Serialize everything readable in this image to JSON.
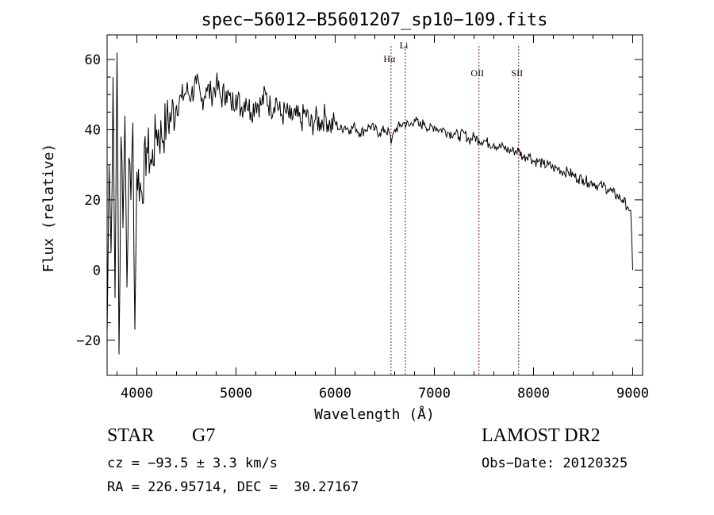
{
  "chart_data": {
    "type": "line",
    "title": "spec−56012−B5601207_sp10−109.fits",
    "xlabel": "Wavelength (Å)",
    "ylabel": "Flux (relative)",
    "xlim": [
      3700,
      9100
    ],
    "ylim": [
      -30,
      67
    ],
    "x_ticks": [
      4000,
      5000,
      6000,
      7000,
      8000,
      9000
    ],
    "y_ticks": [
      -20,
      0,
      20,
      40,
      60
    ],
    "x_tick_labels": [
      "4000",
      "5000",
      "6000",
      "7000",
      "8000",
      "9000"
    ],
    "y_tick_labels": [
      "−20",
      "0",
      "20",
      "40",
      "60"
    ],
    "grid": false,
    "line_color": "#000000",
    "line_markers_color": "#8b1a1a",
    "line_markers": [
      {
        "label": "Hα",
        "wavelength": 6563
      },
      {
        "label": "Li",
        "wavelength": 6708
      },
      {
        "label": "OII",
        "wavelength": 7450
      },
      {
        "label": "SII",
        "wavelength": 7850
      }
    ],
    "series": [
      {
        "x": [
          3700,
          3720,
          3740,
          3760,
          3780,
          3800,
          3820,
          3840,
          3860,
          3880,
          3900,
          3920,
          3940,
          3960,
          3980,
          4000,
          4050,
          4100,
          4150,
          4200,
          4250,
          4300,
          4350,
          4400,
          4450,
          4500,
          4550,
          4600,
          4650,
          4700,
          4750,
          4800,
          4850,
          4900,
          4950,
          5000,
          5050,
          5100,
          5150,
          5200,
          5250,
          5300,
          5350,
          5400,
          5450,
          5500,
          5550,
          5600,
          5650,
          5700,
          5750,
          5800,
          5850,
          5900,
          5950,
          6000,
          6050,
          6100,
          6150,
          6200,
          6250,
          6300,
          6350,
          6400,
          6450,
          6500,
          6550,
          6563,
          6600,
          6650,
          6700,
          6750,
          6800,
          6850,
          6900,
          6950,
          7000,
          7050,
          7100,
          7150,
          7200,
          7250,
          7300,
          7350,
          7400,
          7450,
          7500,
          7550,
          7600,
          7650,
          7700,
          7750,
          7800,
          7850,
          7900,
          7950,
          8000,
          8050,
          8100,
          8150,
          8200,
          8250,
          8300,
          8350,
          8400,
          8450,
          8500,
          8550,
          8600,
          8650,
          8700,
          8750,
          8800,
          8850,
          8900,
          8950,
          8980,
          9000
        ],
        "y": [
          -18,
          30,
          5,
          55,
          -8,
          62,
          -24,
          38,
          12,
          44,
          -5,
          32,
          20,
          42,
          -17,
          28,
          22,
          35,
          30,
          40,
          38,
          42,
          44,
          47,
          49,
          51,
          50,
          53,
          48,
          52,
          50,
          53,
          49,
          51,
          47,
          50,
          46,
          49,
          45,
          48,
          47,
          50,
          46,
          49,
          44,
          45,
          43,
          44,
          42,
          45,
          41,
          43,
          42,
          44,
          41,
          42,
          40,
          41,
          40,
          41,
          39,
          40,
          41,
          40,
          39,
          40,
          39,
          36,
          40,
          41,
          42,
          41,
          43,
          41,
          42,
          40,
          41,
          40,
          40,
          39,
          39,
          38,
          39,
          37,
          38,
          37,
          37,
          36,
          36,
          35,
          35,
          34,
          34,
          34,
          32,
          33,
          31,
          31,
          30,
          30,
          29,
          29,
          28,
          28,
          27,
          26,
          26,
          25,
          25,
          24,
          24,
          23,
          22,
          21,
          20,
          18,
          17,
          0
        ]
      }
    ]
  },
  "footer": {
    "object_class": "STAR",
    "subclass": "G7",
    "survey": "LAMOST DR2",
    "velocity": "cz = −93.5 ± 3.3 km/s",
    "obs_date": "Obs−Date: 20120325",
    "coords": "RA = 226.95714, DEC =  30.27167"
  }
}
